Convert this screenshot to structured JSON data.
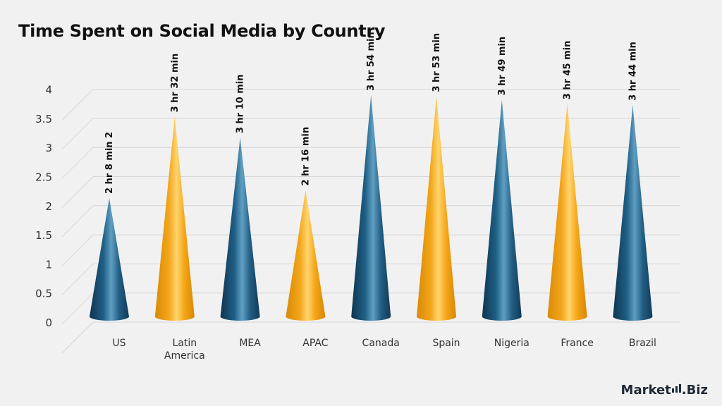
{
  "title": "Time Spent on Social Media by Country",
  "brand": {
    "prefix": "Market",
    "suffix": ".Biz"
  },
  "colors": {
    "blue": "#1e5a80",
    "gold": "#f5a814",
    "grid": "#d6d6d6",
    "text": "#333333"
  },
  "chart_data": {
    "type": "bar",
    "title": "Time Spent on Social Media by Country",
    "xlabel": "",
    "ylabel": "",
    "ylim": [
      0,
      4
    ],
    "yticks": [
      "0",
      "0.5",
      "1",
      "1.5",
      "2",
      "2.5",
      "3",
      "3.5",
      "4"
    ],
    "grid": true,
    "categories": [
      "US",
      "Latin America",
      "MEA",
      "APAC",
      "Canada",
      "Spain",
      "Nigeria",
      "France",
      "Brazil"
    ],
    "values": [
      2.13,
      3.53,
      3.17,
      2.27,
      3.9,
      3.88,
      3.82,
      3.75,
      3.73
    ],
    "data_labels": [
      "2 hr 8 min 2",
      "3 hr 32 min",
      "3 hr 10 min",
      "2 hr 16 min",
      "3 hr 54 min",
      "3 hr 53 min",
      "3 hr 49 min",
      "3 hr 45 min",
      "3 hr 44 min"
    ],
    "bar_colors": [
      "blue",
      "gold",
      "blue",
      "gold",
      "blue",
      "gold",
      "blue",
      "gold",
      "blue"
    ]
  }
}
